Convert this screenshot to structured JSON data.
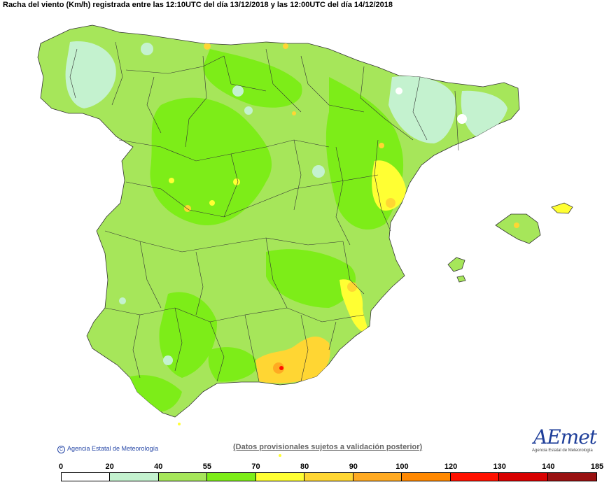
{
  "title": "Racha del viento (Km/h) registrada entre las 12:10UTC del día 13/12/2018 y las 12:00UTC del día 14/12/2018",
  "credit": "Agencia Estatal de Meteorología",
  "disclaimer": "(Datos provisionales sujetos a validación posterior)",
  "logo": {
    "text": "AEmet",
    "subtitle": "Agencia Estatal de Meteorología"
  },
  "legend": {
    "breaks": [
      "0",
      "20",
      "40",
      "55",
      "70",
      "80",
      "90",
      "100",
      "120",
      "130",
      "140",
      "185"
    ],
    "colors": [
      "#ffffff",
      "#c4f2cf",
      "#a6e65a",
      "#7ded18",
      "#ffff33",
      "#ffd633",
      "#ffaa22",
      "#ff8800",
      "#ff1100",
      "#d80000",
      "#991111"
    ]
  },
  "colors": {
    "land_base": "#a6e65a",
    "low_wind": "#c4f2cf",
    "mid_wind": "#7ded18",
    "high_wind_yellow": "#ffff33",
    "high_wind_orange": "#ffaa22",
    "peak_red": "#ff1100"
  }
}
